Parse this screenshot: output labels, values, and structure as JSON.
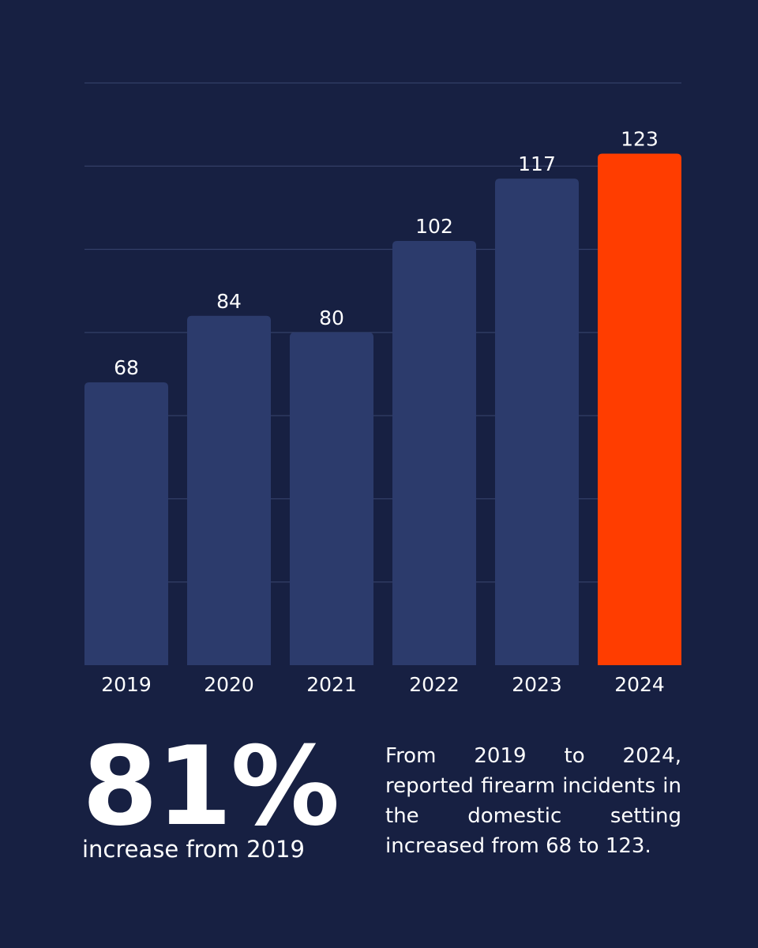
{
  "chart_data": {
    "type": "bar",
    "categories": [
      "2019",
      "2020",
      "2021",
      "2022",
      "2023",
      "2024"
    ],
    "values": [
      68,
      84,
      80,
      102,
      117,
      123
    ],
    "data_labels": [
      "68",
      "84",
      "80",
      "102",
      "117",
      "123"
    ],
    "ylim": [
      0,
      140
    ],
    "grid": true,
    "highlight_index": 5,
    "colors": {
      "bar": "#2c3b6c",
      "highlight": "#ff3d00",
      "grid": "#3a4670",
      "background": "#172042"
    }
  },
  "stat": {
    "value": "81%",
    "caption": "increase from 2019"
  },
  "description": "From 2019 to 2024, reported firearm incidents in the domestic setting increased from 68 to 123."
}
